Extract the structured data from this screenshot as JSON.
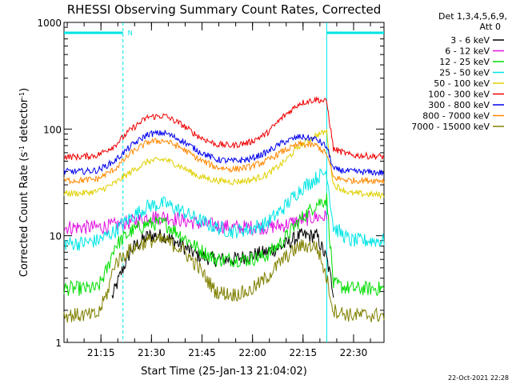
{
  "chart_data": {
    "type": "line",
    "title": "RHESSI Observing Summary Count Rates, Corrected",
    "xlabel": "Start Time (25-Jan-13 21:04:02)",
    "ylabel": "Corrected Count Rate (s",
    "ylabel_sup1": "-1",
    "ylabel_mid": " detector",
    "ylabel_sup2": "-1",
    "ylabel_end": ")",
    "y_scale": "log",
    "ylim": [
      1,
      1000
    ],
    "xlim_minutes": [
      0,
      95
    ],
    "x_ticks": [
      {
        "label": "21:15",
        "minute": 10.97
      },
      {
        "label": "21:30",
        "minute": 25.97
      },
      {
        "label": "21:45",
        "minute": 40.97
      },
      {
        "label": "22:00",
        "minute": 55.97
      },
      {
        "label": "22:15",
        "minute": 70.97
      },
      {
        "label": "22:30",
        "minute": 85.97
      }
    ],
    "y_ticks": [
      {
        "label": "1",
        "value": 1
      },
      {
        "label": "10",
        "value": 10
      },
      {
        "label": "100",
        "value": 100
      },
      {
        "label": "1000",
        "value": 1000
      }
    ],
    "legend_header": [
      "Det 1,3,4,5,6,9,",
      "Att 0"
    ],
    "footer_date": "22-Oct-2021 22:28",
    "night_marker": "N",
    "night_intervals_minutes": [
      [
        0,
        17.5
      ],
      [
        78,
        95
      ]
    ],
    "series": [
      {
        "name": "3 - 6 keV",
        "color": "#000000",
        "x": [
          0,
          10,
          14,
          17,
          20,
          25,
          30,
          35,
          40,
          45,
          50,
          55,
          60,
          65,
          70,
          75,
          78,
          80,
          85,
          95
        ],
        "values": [
          null,
          null,
          2.5,
          4.5,
          7.5,
          10,
          10,
          8,
          6.5,
          6,
          6,
          6.5,
          7,
          8,
          10,
          10,
          6,
          3,
          null,
          null
        ]
      },
      {
        "name": "6 - 12 keV",
        "color": "#e010e0",
        "x": [
          0,
          5,
          10,
          15,
          20,
          25,
          30,
          35,
          40,
          45,
          50,
          55,
          60,
          65,
          70,
          75,
          78,
          80,
          85,
          95
        ],
        "values": [
          12,
          12,
          12,
          12.5,
          13.5,
          15,
          15,
          14,
          13,
          12.5,
          12,
          12,
          12,
          12.5,
          14,
          15,
          15,
          null,
          null,
          null
        ]
      },
      {
        "name": "12 - 25 keV",
        "color": "#00dd00",
        "x": [
          0,
          10,
          13,
          15,
          20,
          25,
          30,
          35,
          40,
          45,
          50,
          55,
          60,
          65,
          70,
          75,
          78,
          80,
          85,
          95
        ],
        "values": [
          3.2,
          3.2,
          5,
          8,
          11,
          13,
          13,
          10,
          7.5,
          6,
          6,
          6,
          6.5,
          9,
          14,
          20,
          22,
          3.5,
          3.2,
          3.2
        ]
      },
      {
        "name": "25 - 50 keV",
        "color": "#00e5e5",
        "x": [
          0,
          5,
          10,
          15,
          20,
          25,
          30,
          35,
          40,
          45,
          50,
          55,
          60,
          65,
          70,
          75,
          78,
          80,
          85,
          95
        ],
        "values": [
          8.5,
          8.5,
          9,
          11,
          15,
          19,
          20,
          17,
          14,
          12,
          11,
          11.5,
          13,
          18,
          27,
          35,
          40,
          12,
          9,
          9
        ]
      },
      {
        "name": "50 - 100 keV",
        "color": "#e0d000",
        "x": [
          0,
          5,
          10,
          15,
          20,
          25,
          30,
          35,
          40,
          45,
          50,
          55,
          60,
          65,
          70,
          75,
          78,
          80,
          85,
          95
        ],
        "values": [
          25,
          25,
          26,
          31,
          40,
          50,
          52,
          44,
          36,
          33,
          32,
          33,
          37,
          48,
          70,
          88,
          95,
          30,
          25,
          24
        ]
      },
      {
        "name": "100 - 300 keV",
        "color": "#ee0000",
        "x": [
          0,
          5,
          10,
          15,
          20,
          25,
          30,
          35,
          40,
          45,
          50,
          55,
          60,
          65,
          70,
          75,
          78,
          80,
          85,
          95
        ],
        "values": [
          55,
          55,
          57,
          70,
          100,
          130,
          133,
          110,
          85,
          72,
          70,
          75,
          90,
          130,
          175,
          190,
          180,
          65,
          57,
          55
        ]
      },
      {
        "name": "300 - 800 keV",
        "color": "#0000ee",
        "x": [
          0,
          5,
          10,
          15,
          20,
          25,
          30,
          35,
          40,
          45,
          50,
          55,
          60,
          65,
          70,
          75,
          78,
          80,
          85,
          95
        ],
        "values": [
          40,
          40,
          41,
          50,
          70,
          90,
          92,
          78,
          62,
          52,
          50,
          52,
          60,
          75,
          85,
          80,
          68,
          42,
          40,
          39
        ]
      },
      {
        "name": "800 - 7000 keV",
        "color": "#ff8800",
        "x": [
          0,
          5,
          10,
          15,
          20,
          25,
          30,
          35,
          40,
          45,
          50,
          55,
          60,
          65,
          70,
          75,
          78,
          80,
          85,
          95
        ],
        "values": [
          33,
          33,
          34,
          42,
          60,
          76,
          78,
          66,
          52,
          44,
          42,
          44,
          50,
          62,
          72,
          70,
          58,
          35,
          33,
          33
        ]
      },
      {
        "name": "7000 - 15000 keV",
        "color": "#808000",
        "x": [
          0,
          10,
          13,
          15,
          20,
          25,
          30,
          35,
          40,
          45,
          50,
          55,
          60,
          65,
          70,
          75,
          78,
          80,
          85,
          95
        ],
        "values": [
          1.8,
          1.8,
          3,
          5.5,
          7.5,
          9,
          9,
          7.5,
          5,
          3,
          2.8,
          3,
          4,
          6,
          8,
          8,
          4,
          2,
          1.8,
          1.8
        ]
      }
    ]
  }
}
